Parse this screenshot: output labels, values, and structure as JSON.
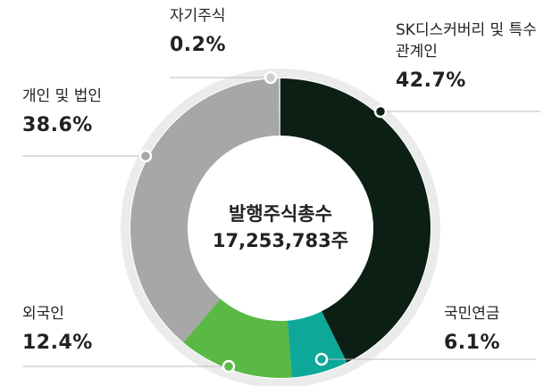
{
  "chart_data": {
    "type": "donut",
    "center_title": "발행주식총수",
    "center_value": "17,253,783주",
    "categories": [
      "SK디스커버리 및 특수관계인",
      "국민연금",
      "외국인",
      "개인 및 법인",
      "자기주식"
    ],
    "values": [
      42.7,
      6.1,
      12.4,
      38.6,
      0.2
    ],
    "value_labels": [
      "42.7%",
      "6.1%",
      "12.4%",
      "38.6%",
      "0.2%"
    ],
    "colors": [
      "#0b1f15",
      "#0ea89a",
      "#5ab845",
      "#a7a7a7",
      "#cfcfcf"
    ]
  }
}
